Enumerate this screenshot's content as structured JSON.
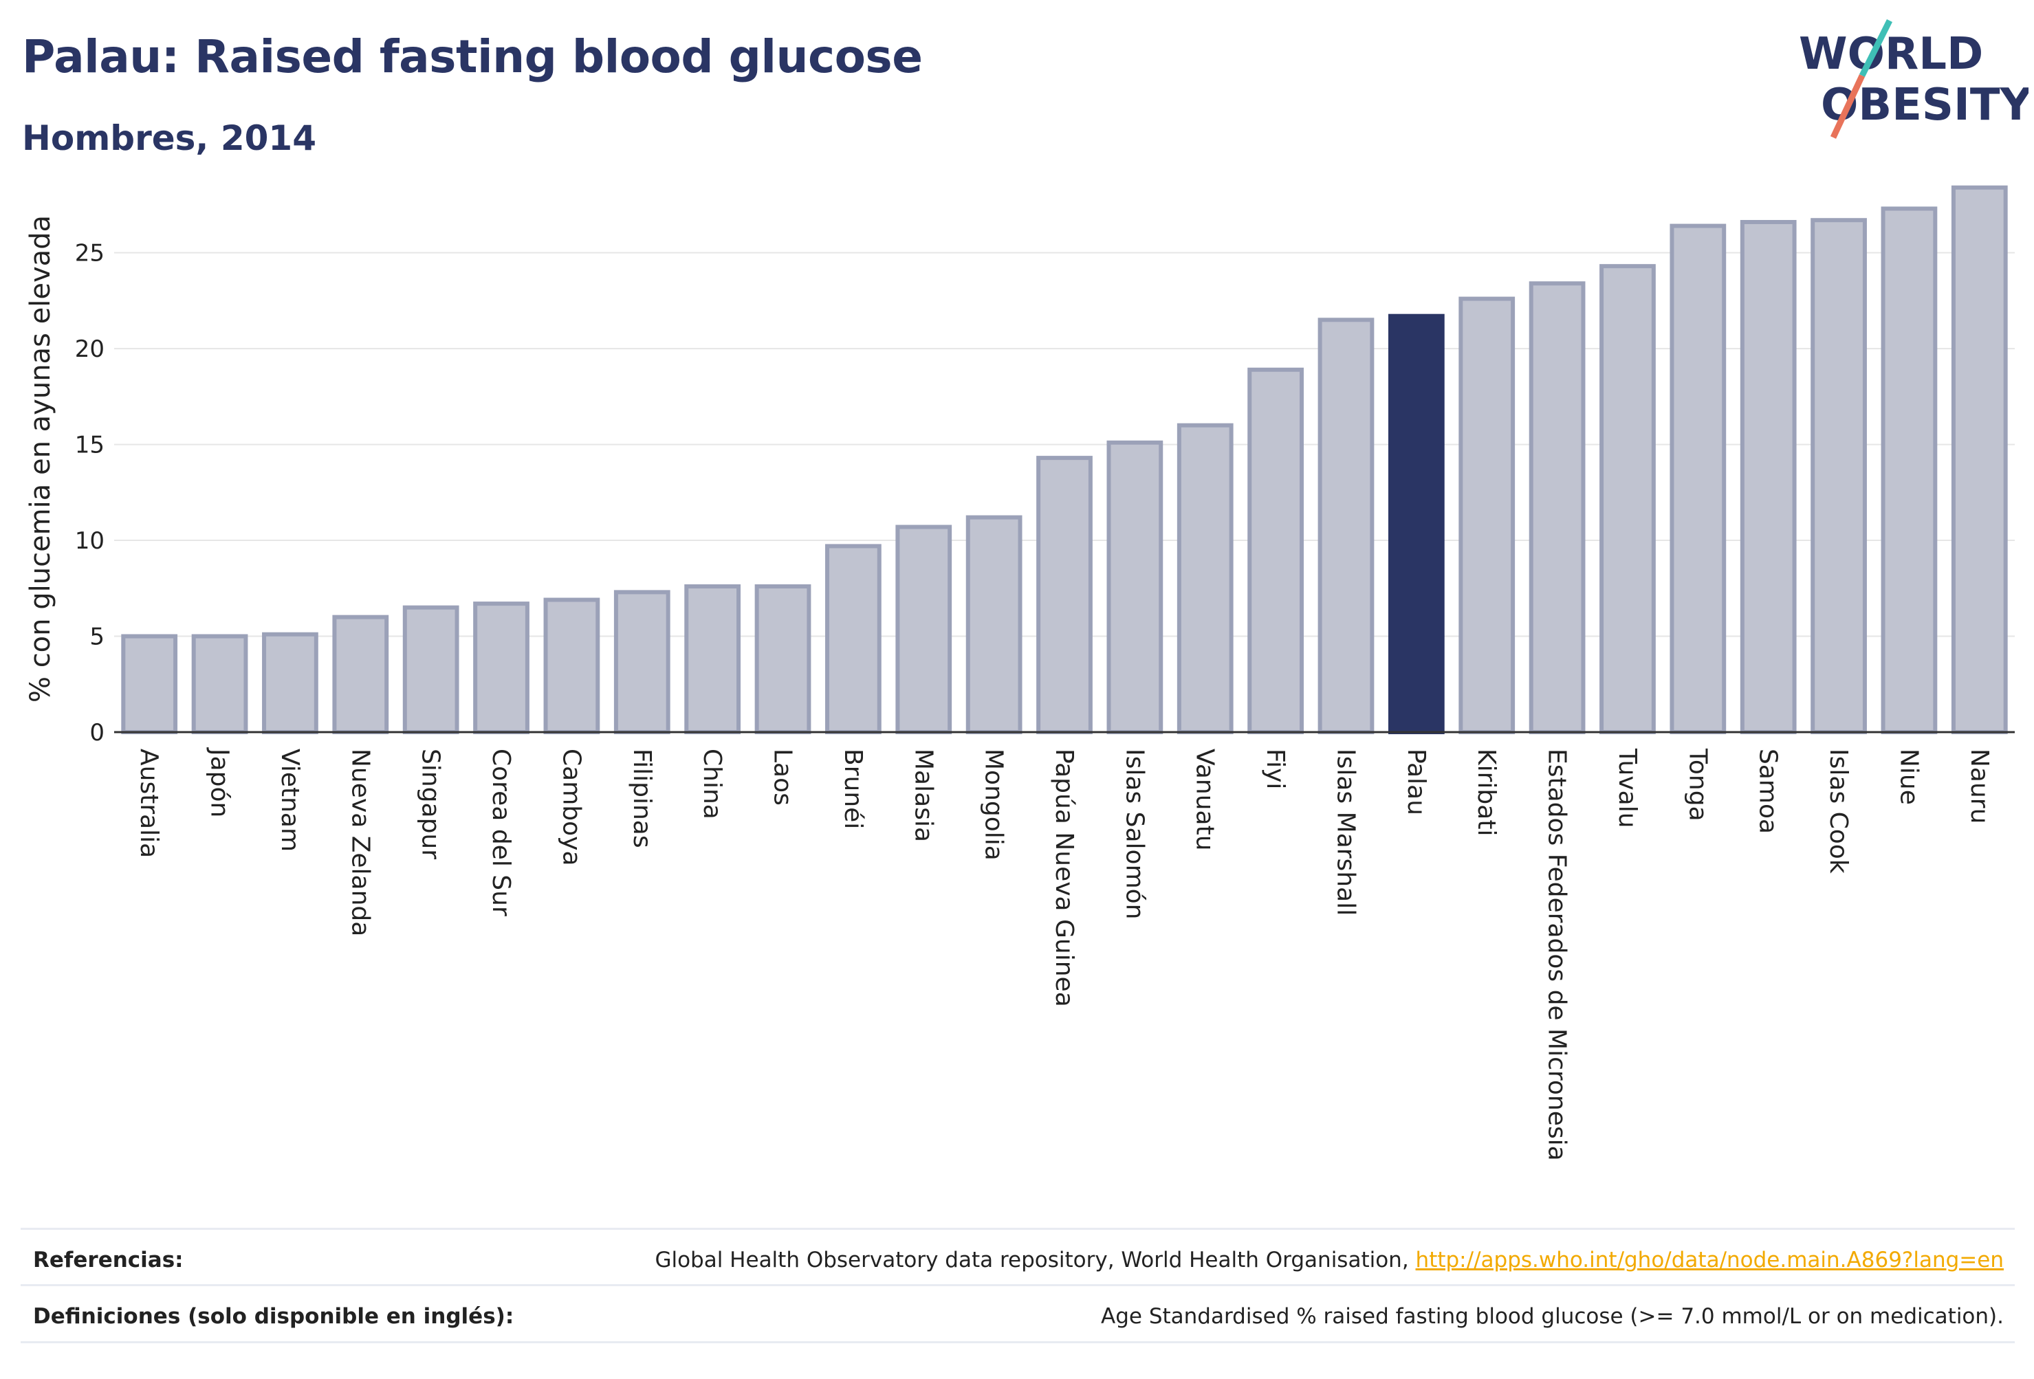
{
  "header": {
    "title": "Palau: Raised fasting blood glucose",
    "subtitle": "Hombres, 2014"
  },
  "logo": {
    "line1": "WORLD",
    "line2": "OBESITY",
    "slash_colors": [
      "#3fbfb6",
      "#e8735a"
    ],
    "text_color": "#2a3564"
  },
  "colors": {
    "bar_fill": "#c0c3d0",
    "bar_stroke": "#9ba1b8",
    "highlight": "#2a3564",
    "grid": "#e6e6e6",
    "axis": "#333333",
    "link": "#f2a900"
  },
  "chart_data": {
    "type": "bar",
    "title": "Palau: Raised fasting blood glucose",
    "subtitle": "Hombres, 2014",
    "ylabel": "% con glucemia en ayunas elevada",
    "xlabel": "",
    "ylim": [
      0,
      28.5
    ],
    "yticks": [
      0,
      5,
      10,
      15,
      20,
      25
    ],
    "grid": true,
    "highlight": "Palau",
    "categories": [
      "Australia",
      "Japón",
      "Vietnam",
      "Nueva Zelanda",
      "Singapur",
      "Corea del Sur",
      "Camboya",
      "Filipinas",
      "China",
      "Laos",
      "Brunéi",
      "Malasia",
      "Mongolia",
      "Papúa Nueva Guinea",
      "Islas Salomón",
      "Vanuatu",
      "Fiyi",
      "Islas Marshall",
      "Palau",
      "Kiribati",
      "Estados Federados de Micronesia",
      "Tuvalu",
      "Tonga",
      "Samoa",
      "Islas Cook",
      "Niue",
      "Nauru"
    ],
    "values": [
      5.0,
      5.0,
      5.1,
      6.0,
      6.5,
      6.7,
      6.9,
      7.3,
      7.6,
      7.6,
      9.7,
      10.7,
      11.2,
      14.3,
      15.1,
      16.0,
      18.9,
      21.5,
      21.7,
      22.6,
      23.4,
      24.3,
      26.4,
      26.6,
      26.7,
      27.3,
      28.4
    ]
  },
  "footer": {
    "references_label": "Referencias:",
    "references_text": "Global Health Observatory data repository, World Health Organisation, ",
    "references_link": "http://apps.who.int/gho/data/node.main.A869?lang=en",
    "definitions_label": "Definiciones (solo disponible en inglés):",
    "definitions_text": "Age Standardised % raised fasting blood glucose (>= 7.0 mmol/L or on medication)."
  }
}
